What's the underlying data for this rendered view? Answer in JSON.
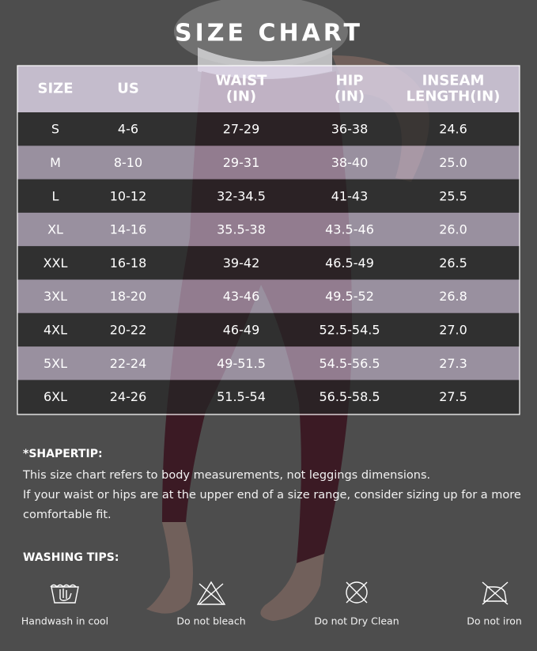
{
  "title": "SIZE CHART",
  "table": {
    "header": [
      [
        "SIZE"
      ],
      [
        "US"
      ],
      [
        "WAIST",
        "(IN)"
      ],
      [
        "HIP",
        "(IN)"
      ],
      [
        "INSEAM",
        "LENGTH(IN)"
      ]
    ],
    "rows": [
      [
        "S",
        "4-6",
        "27-29",
        "36-38",
        "24.6"
      ],
      [
        "M",
        "8-10",
        "29-31",
        "38-40",
        "25.0"
      ],
      [
        "L",
        "10-12",
        "32-34.5",
        "41-43",
        "25.5"
      ],
      [
        "XL",
        "14-16",
        "35.5-38",
        "43.5-46",
        "26.0"
      ],
      [
        "XXL",
        "16-18",
        "39-42",
        "46.5-49",
        "26.5"
      ],
      [
        "3XL",
        "18-20",
        "43-46",
        "49.5-52",
        "26.8"
      ],
      [
        "4XL",
        "20-22",
        "46-49",
        "52.5-54.5",
        "27.0"
      ],
      [
        "5XL",
        "22-24",
        "49-51.5",
        "54.5-56.5",
        "27.3"
      ],
      [
        "6XL",
        "24-26",
        "51.5-54",
        "56.5-58.5",
        "27.5"
      ]
    ]
  },
  "shapertip": {
    "heading": "*SHAPERTIP:",
    "lines": [
      "This size chart refers to body measurements, not leggings dimensions.",
      "If your waist or hips are at the upper end of a size range, consider sizing up for a more",
      "comfortable fit."
    ]
  },
  "washing": {
    "heading": "WASHING TIPS:",
    "items": [
      "Handwash in cool",
      "Do not bleach",
      "Do not Dry Clean",
      "Do not iron"
    ]
  }
}
